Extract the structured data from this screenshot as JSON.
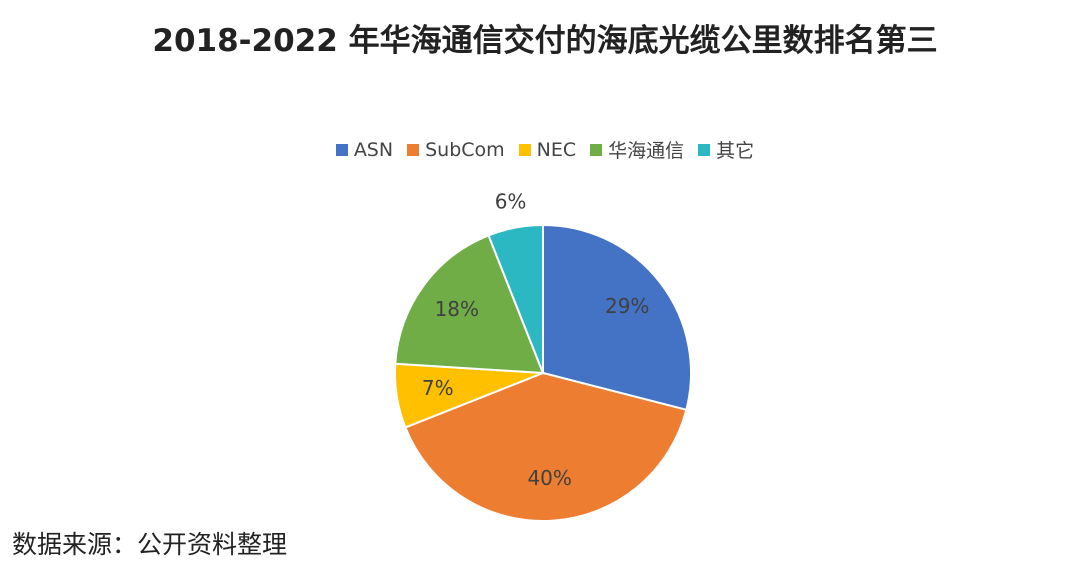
{
  "chart_data": {
    "type": "pie",
    "title": "2018-2022 年华海通信交付的海底光缆公里数排名第三",
    "categories": [
      "ASN",
      "SubCom",
      "NEC",
      "华海通信",
      "其它"
    ],
    "values": [
      29,
      40,
      7,
      18,
      6
    ],
    "value_labels": [
      "29%",
      "40%",
      "7%",
      "18%",
      "6%"
    ],
    "colors": [
      "#4472c4",
      "#ed7d31",
      "#ffc000",
      "#70ad47",
      "#2bb8c2"
    ],
    "source": "数据来源：公开资料整理"
  }
}
